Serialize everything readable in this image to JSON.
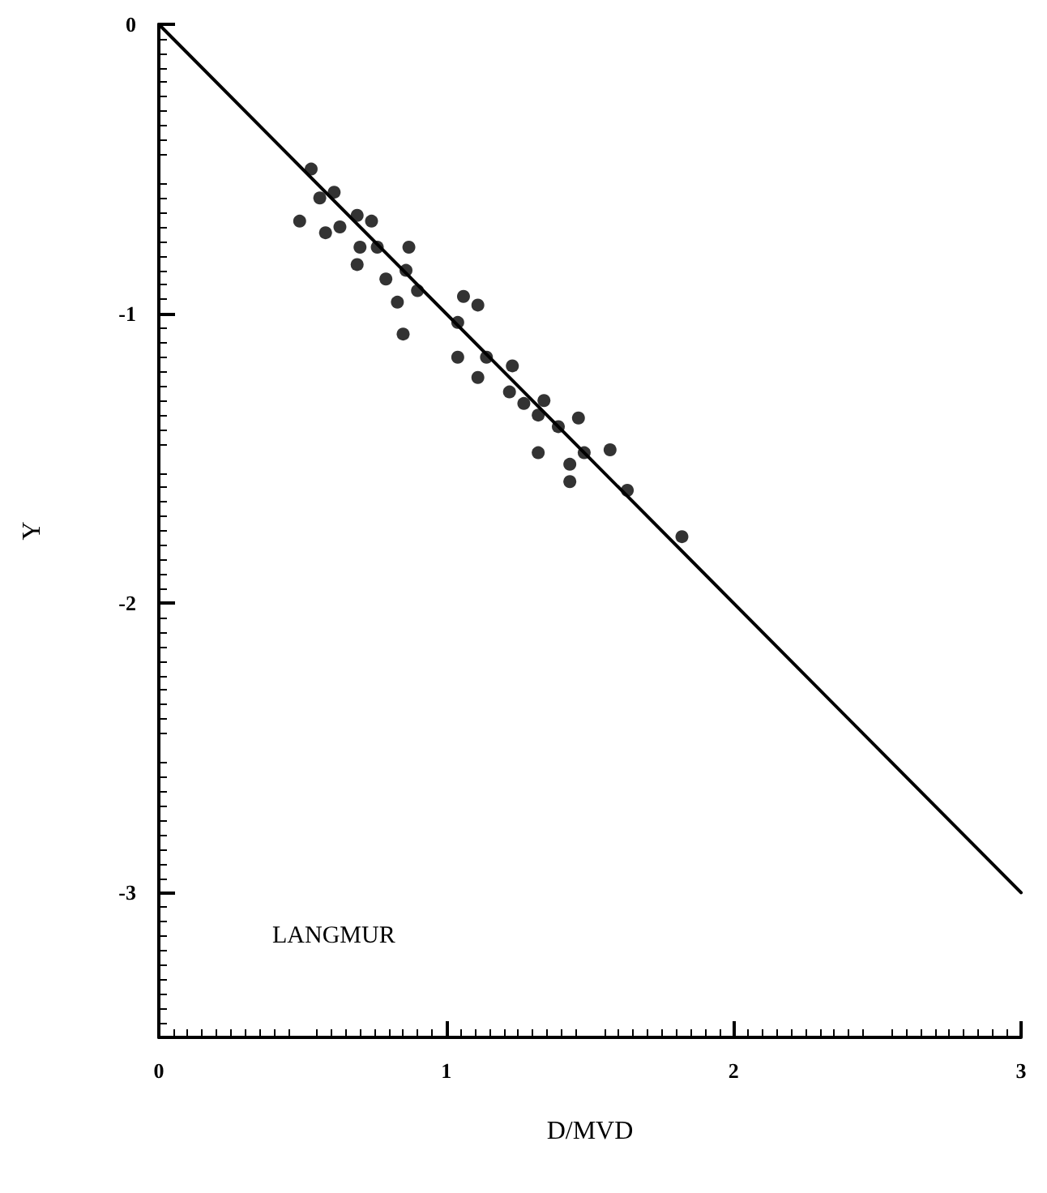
{
  "chart_data": {
    "type": "scatter",
    "xlabel": "D/MVD",
    "ylabel": "Y",
    "annotations": [
      "LANGMUR"
    ],
    "xlim": [
      0,
      3
    ],
    "ylim": [
      -3.5,
      0
    ],
    "xticks": [
      0,
      1,
      2,
      3
    ],
    "yticks": [
      0,
      -1,
      -2,
      -3
    ],
    "grid": false,
    "marker": "circle",
    "series": [
      {
        "color": "#000000",
        "x": [
          0.53,
          0.49,
          0.56,
          0.61,
          0.58,
          0.63,
          0.69,
          0.74,
          0.7,
          0.69,
          0.76,
          0.87,
          0.86,
          0.79,
          0.83,
          0.9,
          0.85,
          1.06,
          1.11,
          1.04,
          1.04,
          1.14,
          1.11,
          1.23,
          1.22,
          1.27,
          1.32,
          1.34,
          1.39,
          1.32,
          1.46,
          1.43,
          1.48,
          1.43,
          1.57,
          1.63,
          1.82
        ],
        "values": [
          -0.5,
          -0.68,
          -0.6,
          -0.58,
          -0.72,
          -0.7,
          -0.66,
          -0.68,
          -0.77,
          -0.83,
          -0.77,
          -0.77,
          -0.85,
          -0.88,
          -0.96,
          -0.92,
          -1.07,
          -0.94,
          -0.97,
          -1.03,
          -1.15,
          -1.15,
          -1.22,
          -1.18,
          -1.27,
          -1.31,
          -1.35,
          -1.3,
          -1.39,
          -1.48,
          -1.36,
          -1.52,
          -1.48,
          -1.58,
          -1.47,
          -1.61,
          -1.77
        ]
      },
      {
        "type": "line",
        "color": "#000000",
        "x": [
          0,
          3
        ],
        "values": [
          0,
          -3
        ],
        "marker": "none",
        "line_style": "solid"
      }
    ]
  }
}
